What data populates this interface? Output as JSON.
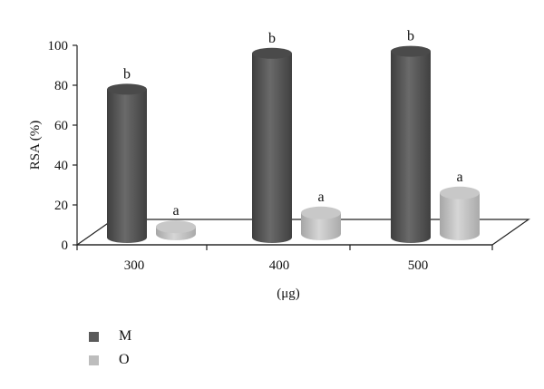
{
  "chart_data": {
    "type": "bar",
    "style": "3d-cylinder",
    "categories": [
      "300",
      "400",
      "500"
    ],
    "series": [
      {
        "name": "M",
        "color": "#5a5a5a",
        "values": [
          78,
          96,
          97
        ],
        "labels": [
          "b",
          "b",
          "b"
        ]
      },
      {
        "name": "O",
        "color": "#bdbdbd",
        "values": [
          9,
          16,
          26
        ],
        "labels": [
          "a",
          "a",
          "a"
        ]
      }
    ],
    "title": "",
    "xlabel": "(μg)",
    "ylabel": "RSA (%)",
    "ylim": [
      0,
      100
    ],
    "yticks": [
      0,
      20,
      40,
      60,
      80,
      100
    ],
    "grid": false,
    "legend_position": "bottom-left"
  }
}
